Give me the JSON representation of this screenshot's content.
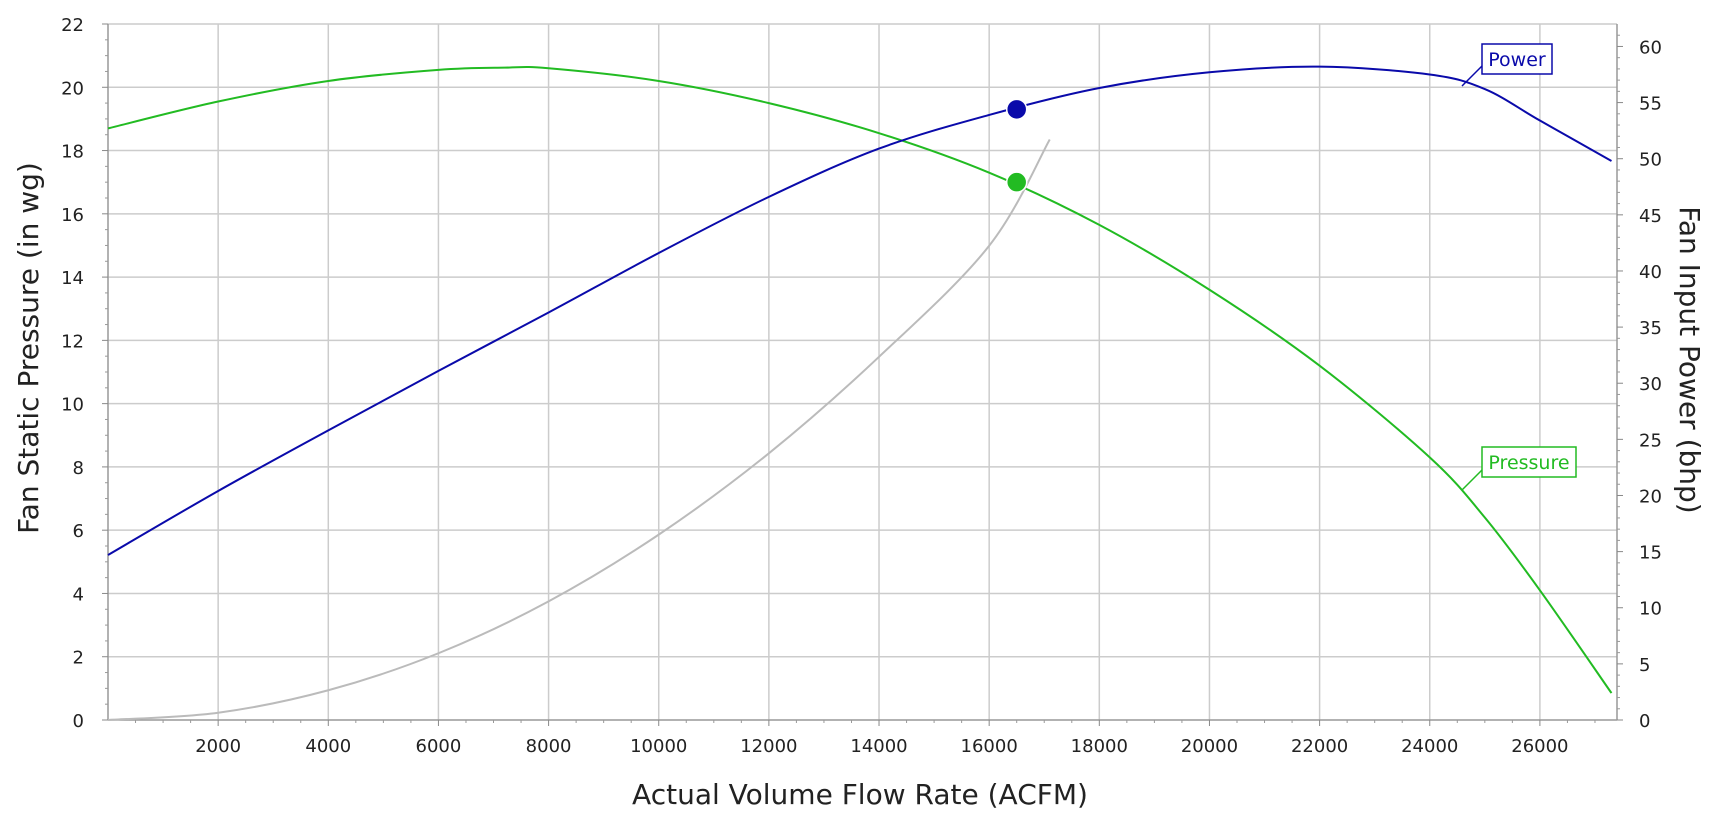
{
  "chart_data": {
    "type": "line",
    "xlabel": "Actual Volume Flow Rate (ACFM)",
    "ylabel": "Fan Static Pressure (in wg)",
    "y2label": "Fan Input Power (bhp)",
    "xlim": [
      0,
      27400
    ],
    "ylim": [
      0,
      22
    ],
    "y2lim": [
      0,
      62
    ],
    "x_ticks": [
      2000,
      4000,
      6000,
      8000,
      10000,
      12000,
      14000,
      16000,
      18000,
      20000,
      22000,
      24000,
      26000
    ],
    "y_ticks": [
      0,
      2,
      4,
      6,
      8,
      10,
      12,
      14,
      16,
      18,
      20,
      22
    ],
    "y2_ticks": [
      0,
      5,
      10,
      15,
      20,
      25,
      30,
      35,
      40,
      45,
      50,
      55,
      60
    ],
    "grid": true,
    "series": [
      {
        "name": "Pressure",
        "axis": "left",
        "color": "#22bb22",
        "x": [
          0,
          2000,
          4000,
          6000,
          7200,
          8000,
          10000,
          12000,
          14000,
          16000,
          18000,
          20000,
          22000,
          24000,
          25000,
          26000,
          27300
        ],
        "values": [
          18.7,
          19.55,
          20.2,
          20.55,
          20.62,
          20.6,
          20.2,
          19.5,
          18.55,
          17.3,
          15.65,
          13.6,
          11.2,
          8.3,
          6.4,
          4.1,
          0.85
        ]
      },
      {
        "name": "Power",
        "axis": "right",
        "color": "#0a0aaa",
        "x": [
          0,
          2000,
          4000,
          6000,
          8000,
          10000,
          12000,
          14000,
          16000,
          18000,
          20000,
          22000,
          24000,
          25000,
          26000,
          27300
        ],
        "values": [
          14.7,
          20.4,
          25.8,
          31.1,
          36.3,
          41.6,
          46.6,
          50.9,
          53.9,
          56.3,
          57.7,
          58.2,
          57.5,
          56.2,
          53.4,
          49.8
        ]
      },
      {
        "name": "",
        "axis": "left",
        "color": "#bbbbbb",
        "x": [
          0,
          2000,
          4000,
          6000,
          8000,
          10000,
          12000,
          14000,
          16000,
          17100
        ],
        "values": [
          0,
          0.23,
          0.94,
          2.11,
          3.75,
          5.86,
          8.43,
          11.48,
          14.99,
          18.35
        ]
      }
    ],
    "operating_points": [
      {
        "series": "Power",
        "x": 16500,
        "value": 54.4,
        "color": "#0a0aaa"
      },
      {
        "series": "Pressure",
        "x": 16500,
        "value": 17.0,
        "color": "#22bb22"
      }
    ],
    "legend": [
      {
        "label": "Power",
        "color": "#0a0aaa",
        "placement": "top-right"
      },
      {
        "label": "Pressure",
        "color": "#22bb22",
        "placement": "right"
      }
    ]
  }
}
